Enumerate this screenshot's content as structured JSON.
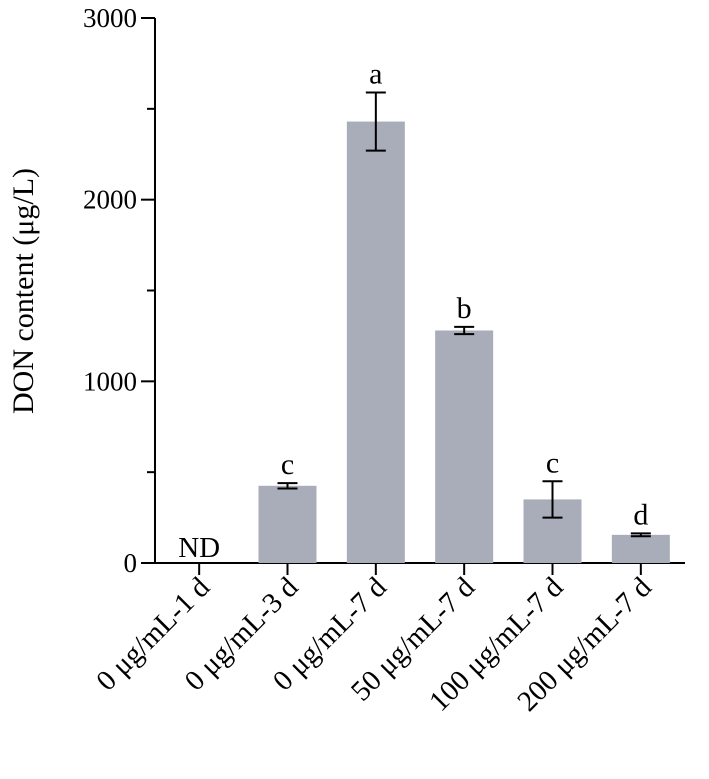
{
  "chart_data": {
    "type": "bar",
    "title": "",
    "xlabel": "",
    "ylabel": "DON content (μg/L)",
    "ylim": [
      0,
      3000
    ],
    "yticks": [
      "0",
      "1000",
      "2000",
      "3000"
    ],
    "categories": [
      "0 μg/mL-1 d",
      "0 μg/mL-3 d",
      "0 μg/mL-7 d",
      "50 μg/mL-7 d",
      "100 μg/mL-7 d",
      "200 μg/mL-7 d"
    ],
    "values": [
      0,
      425,
      2430,
      1280,
      350,
      155
    ],
    "errors": [
      0,
      15,
      160,
      20,
      100,
      8
    ],
    "significance": [
      "",
      "c",
      "a",
      "b",
      "c",
      "d"
    ],
    "annotations": [
      "ND",
      "",
      "",
      "",
      "",
      ""
    ],
    "bar_color": "#a9adb9",
    "grid": false,
    "legend": "none"
  }
}
